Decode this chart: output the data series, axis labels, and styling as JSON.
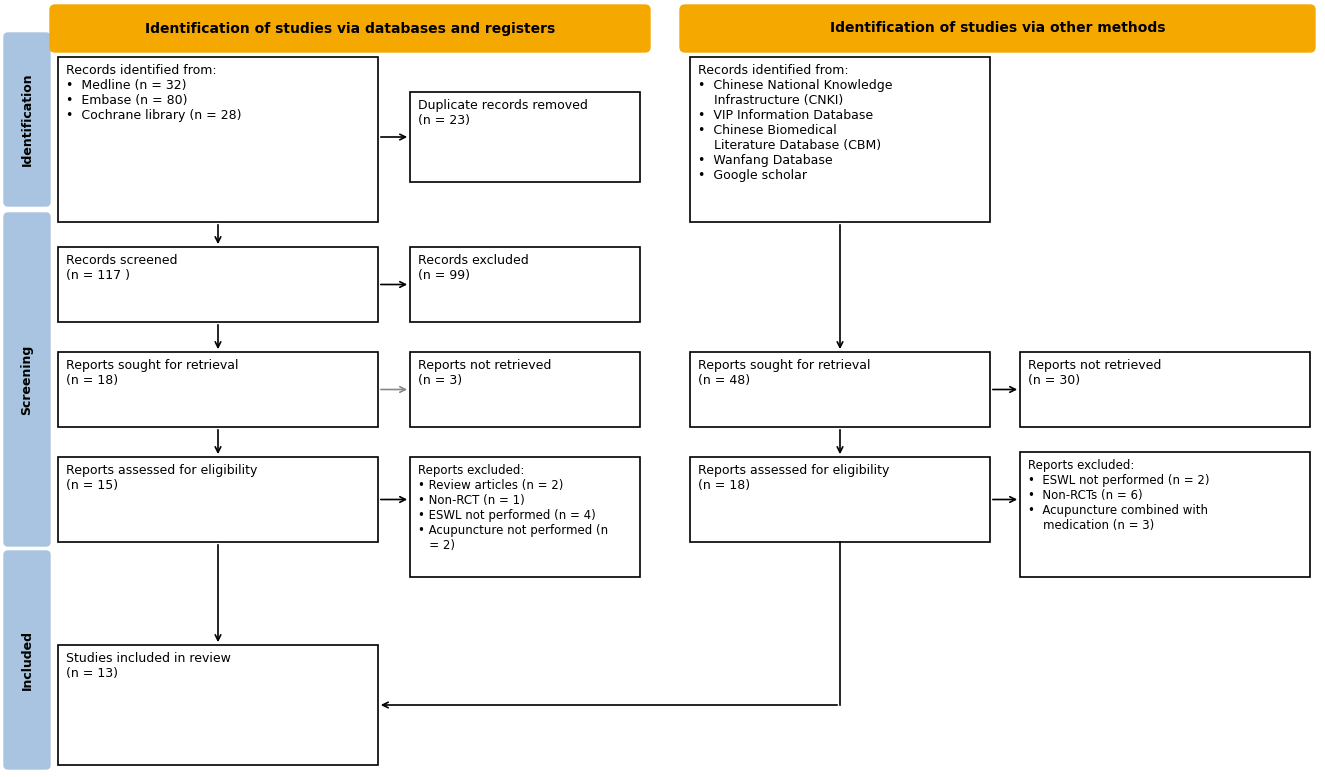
{
  "header_color": "#F5A800",
  "header_text_color": "#000000",
  "box_bg": "#FFFFFF",
  "box_edge": "#000000",
  "side_label_bg": "#A8C4E0",
  "side_label_text": "#000000",
  "arrow_color": "#000000",
  "fig_bg": "#FFFFFF",
  "header_left": "Identification of studies via databases and registers",
  "header_right": "Identification of studies via other methods",
  "side_labels": [
    "Identification",
    "Screening",
    "Included"
  ],
  "boxes": {
    "db_records": "Records identified from:\n•  Medline (n = 32)\n•  Embase (n = 80)\n•  Cochrane library (n = 28)",
    "duplicate": "Duplicate records removed\n(n = 23)",
    "screened": "Records screened\n(n = 117 )",
    "records_excluded": "Records excluded\n(n = 99)",
    "retrieval_left": "Reports sought for retrieval\n(n = 18)",
    "not_retrieved_left": "Reports not retrieved\n(n = 3)",
    "eligibility_left": "Reports assessed for eligibility\n(n = 15)",
    "reports_excluded_left": "Reports excluded:\n• Review articles (n = 2)\n• Non-RCT (n = 1)\n• ESWL not performed (n = 4)\n• Acupuncture not performed (n\n   = 2)",
    "other_records": "Records identified from:\n•  Chinese National Knowledge\n    Infrastructure (CNKI)\n•  VIP Information Database\n•  Chinese Biomedical\n    Literature Database (CBM)\n•  Wanfang Database\n•  Google scholar",
    "retrieval_right": "Reports sought for retrieval\n(n = 48)",
    "not_retrieved_right": "Reports not retrieved\n(n = 30)",
    "eligibility_right": "Reports assessed for eligibility\n(n = 18)",
    "reports_excluded_right": "Reports excluded:\n•  ESWL not performed (n = 2)\n•  Non-RCTs (n = 6)\n•  Acupuncture combined with\n    medication (n = 3)",
    "included": "Studies included in review\n(n = 13)"
  }
}
